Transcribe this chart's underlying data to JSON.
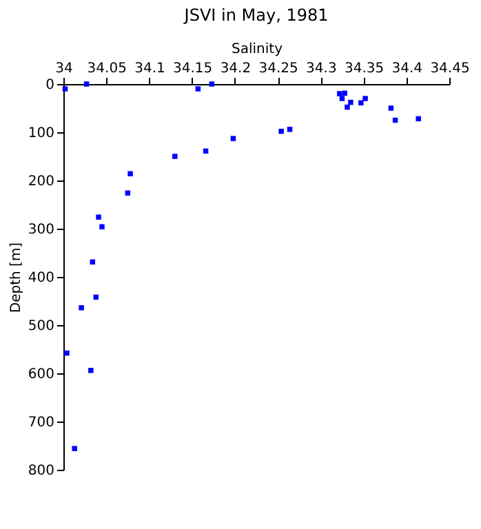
{
  "chart_data": {
    "type": "scatter",
    "title": "JSVI in May, 1981",
    "xlabel": "Salinity",
    "ylabel": "Depth [m]",
    "x": [
      34.002,
      34.027,
      34.157,
      34.173,
      34.198,
      34.166,
      34.13,
      34.078,
      34.075,
      34.041,
      34.045,
      34.322,
      34.328,
      34.325,
      34.335,
      34.331,
      34.347,
      34.352,
      34.382,
      34.387,
      34.414,
      34.254,
      34.264,
      34.034,
      34.038,
      34.021,
      34.004,
      34.032,
      34.013
    ],
    "series": [
      {
        "color": "#0000ff",
        "values": [
          10,
          0,
          10,
          0,
          113,
          139,
          150,
          186,
          226,
          276,
          296,
          20,
          19,
          30,
          38,
          48,
          39,
          30,
          50,
          75,
          72,
          98,
          94,
          369,
          442,
          464,
          558,
          594,
          756
        ]
      }
    ],
    "xlim": [
      34,
      34.45
    ],
    "xticks": [
      34,
      34.05,
      34.1,
      34.15,
      34.2,
      34.25,
      34.3,
      34.35,
      34.4,
      34.45
    ],
    "ylim": [
      800,
      0
    ],
    "yticks": [
      0,
      100,
      200,
      300,
      400,
      500,
      600,
      700,
      800
    ],
    "marker": "square",
    "grid": false
  }
}
